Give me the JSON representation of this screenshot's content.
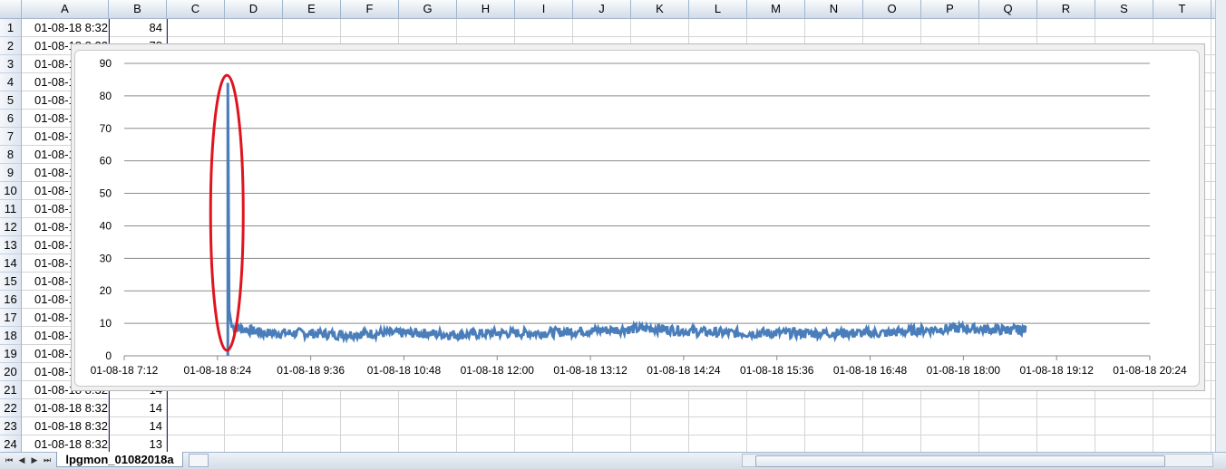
{
  "spreadsheet": {
    "columns": [
      "A",
      "B",
      "C",
      "D",
      "E",
      "F",
      "G",
      "H",
      "I",
      "J",
      "K",
      "L",
      "M",
      "N",
      "O",
      "P",
      "Q",
      "R",
      "S",
      "T"
    ],
    "rows": [
      "1",
      "2",
      "3",
      "4",
      "5",
      "6",
      "7",
      "8",
      "9",
      "10",
      "11",
      "12",
      "13",
      "14",
      "15",
      "16",
      "17",
      "18",
      "19",
      "20",
      "21",
      "22",
      "23",
      "24"
    ],
    "cells": [
      {
        "a": "01-08-18 8:32",
        "b": "84"
      },
      {
        "a": "01-08-18 8:32",
        "b": "78"
      },
      {
        "a": "01-08-1",
        "b": ""
      },
      {
        "a": "01-08-1",
        "b": ""
      },
      {
        "a": "01-08-1",
        "b": ""
      },
      {
        "a": "01-08-1",
        "b": ""
      },
      {
        "a": "01-08-1",
        "b": ""
      },
      {
        "a": "01-08-1",
        "b": ""
      },
      {
        "a": "01-08-1",
        "b": ""
      },
      {
        "a": "01-08-1",
        "b": ""
      },
      {
        "a": "01-08-1",
        "b": ""
      },
      {
        "a": "01-08-1",
        "b": ""
      },
      {
        "a": "01-08-1",
        "b": ""
      },
      {
        "a": "01-08-1",
        "b": ""
      },
      {
        "a": "01-08-1",
        "b": ""
      },
      {
        "a": "01-08-1",
        "b": ""
      },
      {
        "a": "01-08-1",
        "b": ""
      },
      {
        "a": "01-08-1",
        "b": ""
      },
      {
        "a": "01-08-1",
        "b": ""
      },
      {
        "a": "01-08-1",
        "b": ""
      },
      {
        "a": "01-08-18 8:32",
        "b": "14"
      },
      {
        "a": "01-08-18 8:32",
        "b": "14"
      },
      {
        "a": "01-08-18 8:32",
        "b": "14"
      },
      {
        "a": "01-08-18 8:32",
        "b": "13"
      }
    ]
  },
  "sheet_tab": "lpgmon_01082018a",
  "colors": {
    "series": "#4a7ebb",
    "highlight": "#e0141e",
    "selection": "#1e2aa0"
  },
  "chart_data": {
    "type": "line",
    "x_tick_labels": [
      "01-08-18 7:12",
      "01-08-18 8:24",
      "01-08-18 9:36",
      "01-08-18 10:48",
      "01-08-18 12:00",
      "01-08-18 13:12",
      "01-08-18 14:24",
      "01-08-18 15:36",
      "01-08-18 16:48",
      "01-08-18 18:00",
      "01-08-18 19:12",
      "01-08-18 20:24"
    ],
    "y_tick_labels": [
      "0",
      "10",
      "20",
      "30",
      "40",
      "50",
      "60",
      "70",
      "80",
      "90"
    ],
    "ylim": [
      0,
      90
    ],
    "grid": true,
    "legend": "none",
    "annotation": "red ellipse around initial spike",
    "series": [
      {
        "points": [
          [
            "01-08-18 8:32",
            84
          ],
          [
            "01-08-18 8:33",
            14
          ],
          [
            "01-08-18 8:35",
            9
          ],
          [
            "01-08-18 9:00",
            7
          ],
          [
            "01-08-18 9:30",
            7
          ],
          [
            "01-08-18 10:00",
            6.5
          ],
          [
            "01-08-18 10:30",
            7
          ],
          [
            "01-08-18 11:00",
            7
          ],
          [
            "01-08-18 11:30",
            6.5
          ],
          [
            "01-08-18 12:00",
            7
          ],
          [
            "01-08-18 12:30",
            7
          ],
          [
            "01-08-18 13:00",
            7.5
          ],
          [
            "01-08-18 13:30",
            8
          ],
          [
            "01-08-18 14:00",
            8.5
          ],
          [
            "01-08-18 14:30",
            7.5
          ],
          [
            "01-08-18 15:00",
            7
          ],
          [
            "01-08-18 15:30",
            7
          ],
          [
            "01-08-18 16:00",
            7
          ],
          [
            "01-08-18 16:30",
            7
          ],
          [
            "01-08-18 17:00",
            7
          ],
          [
            "01-08-18 17:30",
            8
          ],
          [
            "01-08-18 18:00",
            8.5
          ],
          [
            "01-08-18 18:30",
            8
          ],
          [
            "01-08-18 18:48",
            8
          ]
        ]
      }
    ]
  }
}
